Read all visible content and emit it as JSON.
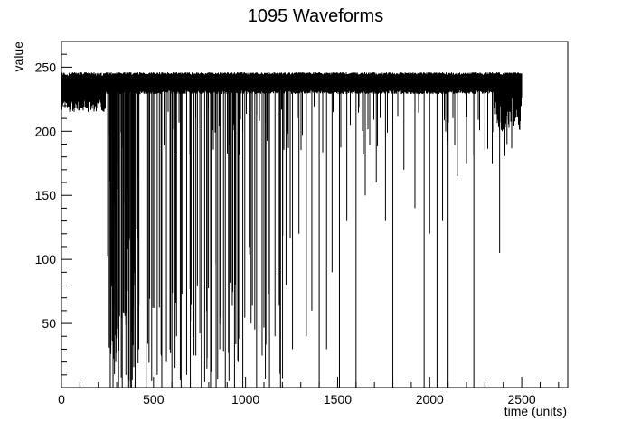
{
  "chart_data": {
    "type": "line",
    "title": "1095 Waveforms",
    "xlabel": "time (units)",
    "ylabel": "value",
    "xlim": [
      0,
      2750
    ],
    "ylim": [
      0,
      270
    ],
    "x_ticks": [
      0,
      500,
      1000,
      1500,
      2000,
      2500
    ],
    "y_ticks": [
      50,
      100,
      150,
      200,
      250
    ],
    "grid": false,
    "legend": "none",
    "series": [
      {
        "baseline_band": [
          232,
          246
        ],
        "x_range": [
          0,
          2500
        ],
        "note_values": "overlaid waveforms near 240 with deep downward spikes",
        "dropouts": [
          {
            "x": 265,
            "min": 0
          },
          {
            "x": 280,
            "min": 0
          },
          {
            "x": 295,
            "min": 20
          },
          {
            "x": 310,
            "min": 0
          },
          {
            "x": 330,
            "min": 0
          },
          {
            "x": 350,
            "min": 10
          },
          {
            "x": 365,
            "min": 0
          },
          {
            "x": 380,
            "min": 0
          },
          {
            "x": 400,
            "min": 0
          },
          {
            "x": 420,
            "min": 30
          },
          {
            "x": 460,
            "min": 0
          },
          {
            "x": 490,
            "min": 5
          },
          {
            "x": 520,
            "min": 10
          },
          {
            "x": 545,
            "min": 0
          },
          {
            "x": 570,
            "min": 20
          },
          {
            "x": 600,
            "min": 0
          },
          {
            "x": 625,
            "min": 40
          },
          {
            "x": 650,
            "min": 0
          },
          {
            "x": 680,
            "min": 10
          },
          {
            "x": 700,
            "min": 0
          },
          {
            "x": 730,
            "min": 25
          },
          {
            "x": 760,
            "min": 0
          },
          {
            "x": 790,
            "min": 15
          },
          {
            "x": 810,
            "min": 0
          },
          {
            "x": 840,
            "min": 0
          },
          {
            "x": 860,
            "min": 30
          },
          {
            "x": 890,
            "min": 0
          },
          {
            "x": 910,
            "min": 5
          },
          {
            "x": 940,
            "min": 0
          },
          {
            "x": 960,
            "min": 20
          },
          {
            "x": 985,
            "min": 0
          },
          {
            "x": 1030,
            "min": 50
          },
          {
            "x": 1060,
            "min": 0
          },
          {
            "x": 1090,
            "min": 25
          },
          {
            "x": 1130,
            "min": 0
          },
          {
            "x": 1160,
            "min": 40
          },
          {
            "x": 1190,
            "min": 0
          },
          {
            "x": 1220,
            "min": 80
          },
          {
            "x": 1255,
            "min": 30
          },
          {
            "x": 1290,
            "min": 120
          },
          {
            "x": 1330,
            "min": 40
          },
          {
            "x": 1360,
            "min": 60
          },
          {
            "x": 1400,
            "min": 0
          },
          {
            "x": 1440,
            "min": 30
          },
          {
            "x": 1470,
            "min": 90
          },
          {
            "x": 1510,
            "min": 0
          },
          {
            "x": 1550,
            "min": 130
          },
          {
            "x": 1600,
            "min": 0
          },
          {
            "x": 1650,
            "min": 150
          },
          {
            "x": 1710,
            "min": 160
          },
          {
            "x": 1760,
            "min": 130
          },
          {
            "x": 1800,
            "min": 0
          },
          {
            "x": 1860,
            "min": 170
          },
          {
            "x": 1920,
            "min": 140
          },
          {
            "x": 1970,
            "min": 0
          },
          {
            "x": 2000,
            "min": 120
          },
          {
            "x": 2040,
            "min": 0
          },
          {
            "x": 2070,
            "min": 130
          },
          {
            "x": 2100,
            "min": 0
          },
          {
            "x": 2150,
            "min": 165
          },
          {
            "x": 2200,
            "min": 175
          },
          {
            "x": 2240,
            "min": 0
          },
          {
            "x": 2300,
            "min": 185
          },
          {
            "x": 2340,
            "min": 175
          },
          {
            "x": 2380,
            "min": 105
          },
          {
            "x": 2420,
            "min": 190
          }
        ]
      }
    ]
  }
}
